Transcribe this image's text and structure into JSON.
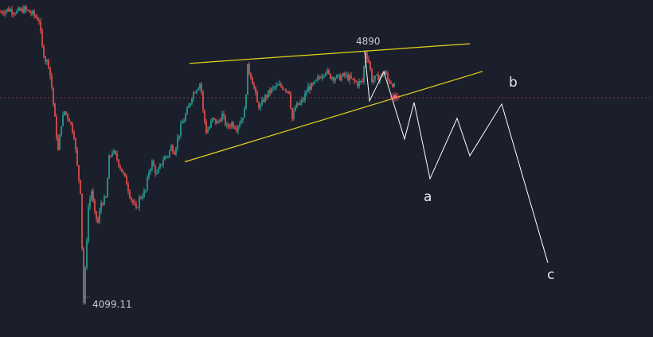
{
  "chart_data": {
    "type": "candlestick",
    "title": "",
    "xlabel": "",
    "ylabel": "",
    "colors": {
      "background": "#1b1f2b",
      "up": "#26a69a",
      "down": "#ef5350",
      "trendline": "#e6d21a",
      "projection": "#ffffff",
      "price_line": "#7a3a44"
    },
    "price_range": [
      4099.11,
      5023
    ],
    "annotations": {
      "high_label": "4890",
      "low_label": "4099.11",
      "low_marker": "···",
      "current_price_line": 4745
    },
    "close_path": [
      [
        0,
        5015
      ],
      [
        5,
        5023
      ],
      [
        10,
        5015
      ],
      [
        15,
        5023
      ],
      [
        20,
        5008
      ],
      [
        24,
        4990
      ],
      [
        26,
        4903
      ],
      [
        28,
        4865
      ],
      [
        30,
        4852
      ],
      [
        32,
        4777
      ],
      [
        34,
        4677
      ],
      [
        36,
        4577
      ],
      [
        38,
        4665
      ],
      [
        40,
        4702
      ],
      [
        43,
        4677
      ],
      [
        46,
        4627
      ],
      [
        48,
        4527
      ],
      [
        50,
        4452
      ],
      [
        52,
        4099.11
      ],
      [
        54,
        4302
      ],
      [
        55,
        4402
      ],
      [
        57,
        4452
      ],
      [
        59,
        4377
      ],
      [
        61,
        4352
      ],
      [
        63,
        4414
      ],
      [
        66,
        4427
      ],
      [
        68,
        4552
      ],
      [
        70,
        4577
      ],
      [
        73,
        4552
      ],
      [
        76,
        4515
      ],
      [
        79,
        4477
      ],
      [
        81,
        4440
      ],
      [
        83,
        4414
      ],
      [
        85,
        4389
      ],
      [
        87,
        4427
      ],
      [
        89,
        4440
      ],
      [
        91,
        4452
      ],
      [
        93,
        4515
      ],
      [
        95,
        4540
      ],
      [
        98,
        4502
      ],
      [
        100,
        4527
      ],
      [
        102,
        4552
      ],
      [
        105,
        4565
      ],
      [
        107,
        4590
      ],
      [
        109,
        4577
      ],
      [
        111,
        4615
      ],
      [
        113,
        4652
      ],
      [
        115,
        4677
      ],
      [
        118,
        4715
      ],
      [
        120,
        4752
      ],
      [
        123,
        4777
      ],
      [
        125,
        4790
      ],
      [
        126,
        4765
      ],
      [
        127,
        4702
      ],
      [
        129,
        4640
      ],
      [
        131,
        4652
      ],
      [
        133,
        4677
      ],
      [
        136,
        4665
      ],
      [
        139,
        4690
      ],
      [
        142,
        4652
      ],
      [
        145,
        4665
      ],
      [
        148,
        4652
      ],
      [
        151,
        4677
      ],
      [
        153,
        4702
      ],
      [
        154,
        4765
      ],
      [
        155,
        4840
      ],
      [
        157,
        4815
      ],
      [
        159,
        4777
      ],
      [
        161,
        4727
      ],
      [
        163,
        4715
      ],
      [
        165,
        4740
      ],
      [
        169,
        4765
      ],
      [
        172,
        4777
      ],
      [
        175,
        4782
      ],
      [
        178,
        4777
      ],
      [
        181,
        4765
      ],
      [
        183,
        4677
      ],
      [
        185,
        4715
      ],
      [
        188,
        4727
      ],
      [
        190,
        4740
      ],
      [
        193,
        4777
      ],
      [
        196,
        4782
      ],
      [
        199,
        4802
      ],
      [
        201,
        4815
      ],
      [
        204,
        4832
      ],
      [
        206,
        4815
      ],
      [
        209,
        4810
      ],
      [
        212,
        4807
      ],
      [
        216,
        4815
      ],
      [
        220,
        4802
      ],
      [
        224,
        4790
      ],
      [
        227,
        4795
      ],
      [
        229,
        4890
      ],
      [
        231,
        4860
      ],
      [
        233,
        4802
      ],
      [
        236,
        4807
      ],
      [
        239,
        4815
      ],
      [
        241,
        4827
      ],
      [
        243,
        4802
      ],
      [
        246,
        4790
      ],
      [
        248,
        4765
      ]
    ],
    "trendlines": [
      {
        "name": "upper",
        "from": [
          119,
          4853
        ],
        "to": [
          295,
          4915
        ]
      },
      {
        "name": "lower",
        "from": [
          116,
          4543
        ],
        "to": [
          303,
          4828
        ]
      }
    ],
    "projection_path": [
      [
        229,
        4890
      ],
      [
        232,
        4735
      ],
      [
        241,
        4827
      ],
      [
        254,
        4615
      ],
      [
        260,
        4730
      ],
      [
        270,
        4490
      ],
      [
        287,
        4680
      ],
      [
        295,
        4562
      ],
      [
        315,
        4725
      ],
      [
        344,
        4225
      ]
    ],
    "wave_labels": [
      {
        "text": "a",
        "at": [
          268,
          4430
        ]
      },
      {
        "text": "b",
        "at": [
          322,
          4795
        ]
      },
      {
        "text": "c",
        "at": [
          346,
          4195
        ]
      }
    ]
  }
}
